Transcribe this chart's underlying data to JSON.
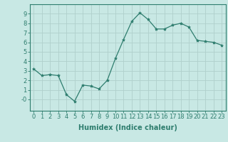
{
  "x": [
    0,
    1,
    2,
    3,
    4,
    5,
    6,
    7,
    8,
    9,
    10,
    11,
    12,
    13,
    14,
    15,
    16,
    17,
    18,
    19,
    20,
    21,
    22,
    23
  ],
  "y": [
    3.2,
    2.5,
    2.6,
    2.5,
    0.5,
    -0.2,
    1.5,
    1.4,
    1.1,
    2.0,
    4.3,
    6.3,
    8.2,
    9.1,
    8.4,
    7.4,
    7.4,
    7.8,
    8.0,
    7.6,
    6.2,
    6.1,
    6.0,
    5.7
  ],
  "line_color": "#2e7d6e",
  "marker": "*",
  "marker_size": 3,
  "bg_color": "#c8e8e4",
  "grid_color": "#b0d0cc",
  "xlabel": "Humidex (Indice chaleur)",
  "xlim": [
    -0.5,
    23.5
  ],
  "ylim": [
    -1.2,
    10
  ],
  "ytick_vals": [
    0,
    1,
    2,
    3,
    4,
    5,
    6,
    7,
    8,
    9
  ],
  "ytick_labels": [
    "-0",
    "1",
    "2",
    "3",
    "4",
    "5",
    "6",
    "7",
    "8",
    "9"
  ],
  "xticks": [
    0,
    1,
    2,
    3,
    4,
    5,
    6,
    7,
    8,
    9,
    10,
    11,
    12,
    13,
    14,
    15,
    16,
    17,
    18,
    19,
    20,
    21,
    22,
    23
  ],
  "axis_color": "#2e7d6e",
  "font_color": "#2e7d6e",
  "font_size": 6,
  "label_font_size": 7
}
